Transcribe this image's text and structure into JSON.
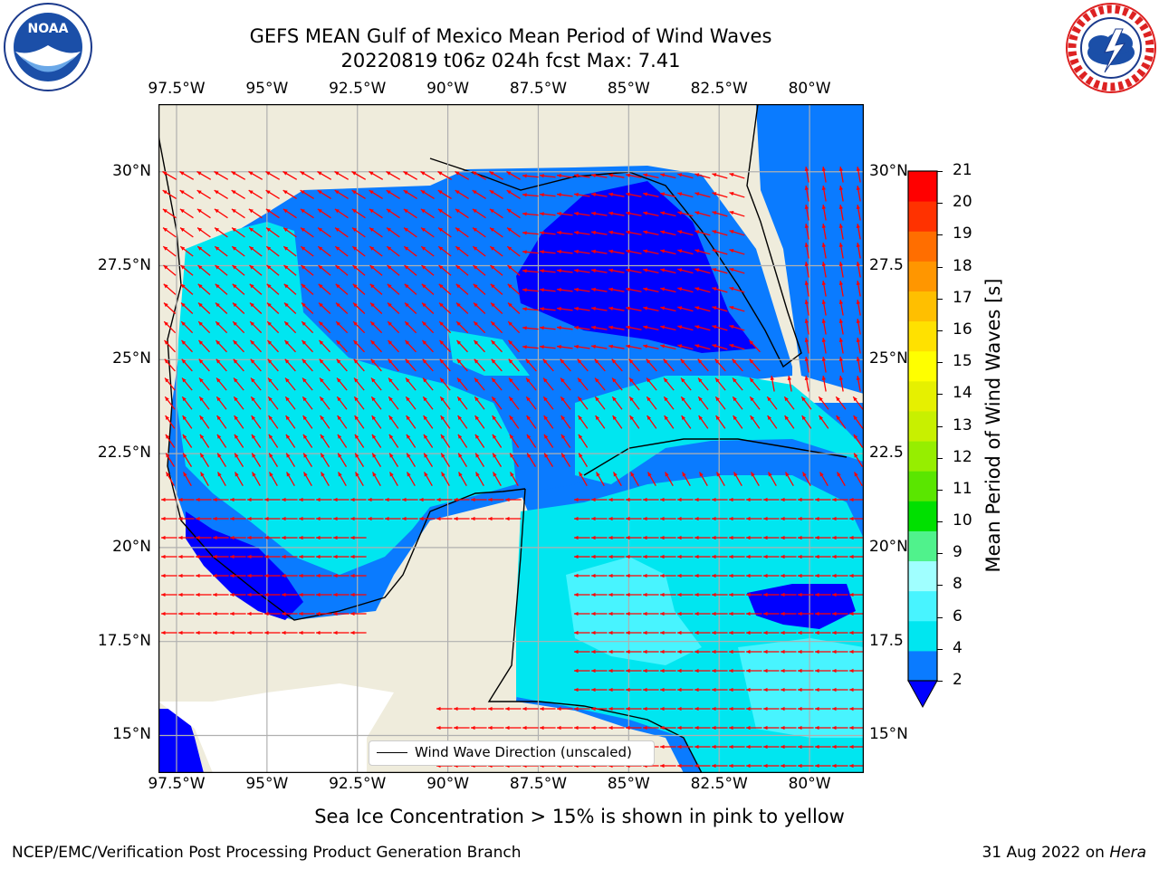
{
  "header": {
    "title_line1": "GEFS MEAN Gulf of Mexico Mean Period of Wind Waves",
    "title_line2": "20220819 t06z 024h fcst   Max: 7.41"
  },
  "logos": {
    "noara_text": "NOAA",
    "noaa_ring_text": "NATIONAL OCEANIC AND ATMOSPHERIC ADMINISTRATION · U.S. DEPARTMENT OF COMMERCE",
    "nws_ring_text": "NATIONAL WEATHER SERVICE"
  },
  "map": {
    "lon_ticks": [
      "97.5°W",
      "95°W",
      "92.5°W",
      "90°W",
      "87.5°W",
      "85°W",
      "82.5°W",
      "80°W"
    ],
    "lat_ticks_left": [
      "30°N",
      "27.5°N",
      "25°N",
      "22.5°N",
      "20°N",
      "17.5°N",
      "15°N"
    ],
    "lat_ticks_right": [
      "30°N",
      "27.5",
      "25°N",
      "22.5",
      "20°N",
      "17.5",
      "15°N"
    ],
    "legend_label": "Wind Wave Direction (unscaled)",
    "land_color": "#efecdc",
    "arrow_color": "#ff0000",
    "grid": true
  },
  "colorbar": {
    "label": "Mean Period of Wind Waves [s]",
    "ticks": [
      "2",
      "4",
      "6",
      "8",
      "9",
      "10",
      "11",
      "12",
      "13",
      "14",
      "15",
      "16",
      "17",
      "18",
      "19",
      "20",
      "21"
    ],
    "colors": [
      "#0a7bff",
      "#00e6f0",
      "#48f4ff",
      "#a0ffff",
      "#50f28c",
      "#00e000",
      "#5ae600",
      "#96ee00",
      "#c8f000",
      "#e6f000",
      "#ffff00",
      "#ffe100",
      "#ffbf00",
      "#ff9600",
      "#ff6e00",
      "#ff3200",
      "#ff0000"
    ],
    "underflow_color": "#0000ff"
  },
  "chart_data": {
    "type": "heatmap",
    "title": "GEFS MEAN Gulf of Mexico Mean Period of Wind Waves",
    "subtitle": "20220819 t06z 024h fcst   Max: 7.41",
    "x_ticks": [
      "97.5°W",
      "95°W",
      "92.5°W",
      "90°W",
      "87.5°W",
      "85°W",
      "82.5°W",
      "80°W"
    ],
    "y_ticks": [
      "30°N",
      "27.5°N",
      "25°N",
      "22.5°N",
      "20°N",
      "17.5°N",
      "15°N"
    ],
    "xlim": [
      -98,
      -78.5
    ],
    "ylim": [
      14,
      31.8
    ],
    "colorbar_label": "Mean Period of Wind Waves [s]",
    "levels": [
      2,
      4,
      6,
      8,
      9,
      10,
      11,
      12,
      13,
      14,
      15,
      16,
      17,
      18,
      19,
      20,
      21
    ],
    "max": 7.41,
    "annotation": "Sea Ice Concentration > 15% is shown in pink to yellow"
  },
  "footer": {
    "annotation": "Sea Ice Concentration > 15% is shown in pink to yellow",
    "credit": "NCEP/EMC/Verification Post Processing Product Generation Branch",
    "date": "31 Aug 2022 on ",
    "host": "Hera"
  }
}
